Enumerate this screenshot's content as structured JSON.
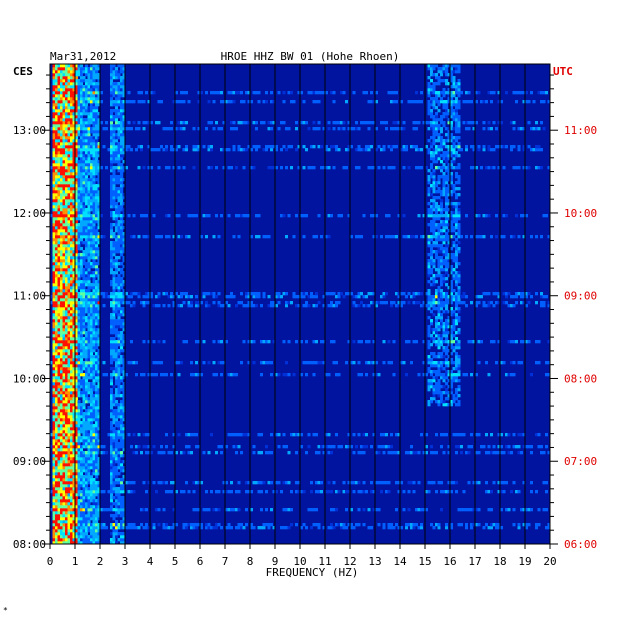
{
  "chart_data": {
    "type": "heatmap",
    "date": "Mar31,2012",
    "title": "HROE HHZ BW 01 (Hohe Rhoen)",
    "left_tz": "CES",
    "right_tz": "UTC",
    "xlabel": "FREQUENCY (HZ)",
    "xlim": [
      0,
      20
    ],
    "x_ticks": [
      "0",
      "1",
      "2",
      "3",
      "4",
      "5",
      "6",
      "7",
      "8",
      "9",
      "10",
      "11",
      "12",
      "13",
      "14",
      "15",
      "16",
      "17",
      "18",
      "19",
      "20"
    ],
    "left_time_labels": [
      "13:00",
      "12:00",
      "11:00",
      "10:00",
      "09:00",
      "08:00"
    ],
    "right_time_labels": [
      "11:00",
      "10:00",
      "09:00",
      "08:00",
      "07:00",
      "06:00"
    ],
    "ylim_local": [
      "08:00",
      "13:48"
    ],
    "footer_mark": "*",
    "colors": {
      "background": "#0014a0",
      "low": "#0030d0",
      "mid": "#00c8ff",
      "high": "#ffff00",
      "peak": "#ff0000",
      "utc_text": "#e00000"
    }
  }
}
